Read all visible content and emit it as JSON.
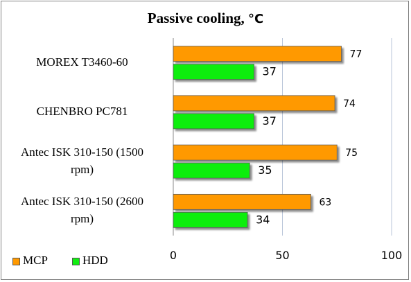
{
  "chart_data": {
    "type": "bar",
    "orientation": "horizontal",
    "title": "Passive cooling,",
    "title_unit": "°C",
    "categories": [
      "MOREX T3460-60",
      "CHENBRO PC781",
      "Antec ISK 310-150 (1500 rpm)",
      "Antec ISK 310-150 (2600 rpm)"
    ],
    "category_lines": [
      [
        "MOREX T3460-60"
      ],
      [
        "CHENBRO PC781"
      ],
      [
        "Antec ISK 310-150 (1500",
        "rpm)"
      ],
      [
        "Antec ISK 310-150 (2600",
        "rpm)"
      ]
    ],
    "series": [
      {
        "name": "MCP",
        "values": [
          77,
          74,
          75,
          63
        ],
        "color": "#ff9900"
      },
      {
        "name": "HDD",
        "values": [
          37,
          37,
          35,
          34
        ],
        "color": "#11ee11"
      }
    ],
    "xlim": [
      0,
      100
    ],
    "xticks": [
      0,
      50,
      100
    ],
    "grid": true,
    "legend": "bottom-left"
  }
}
